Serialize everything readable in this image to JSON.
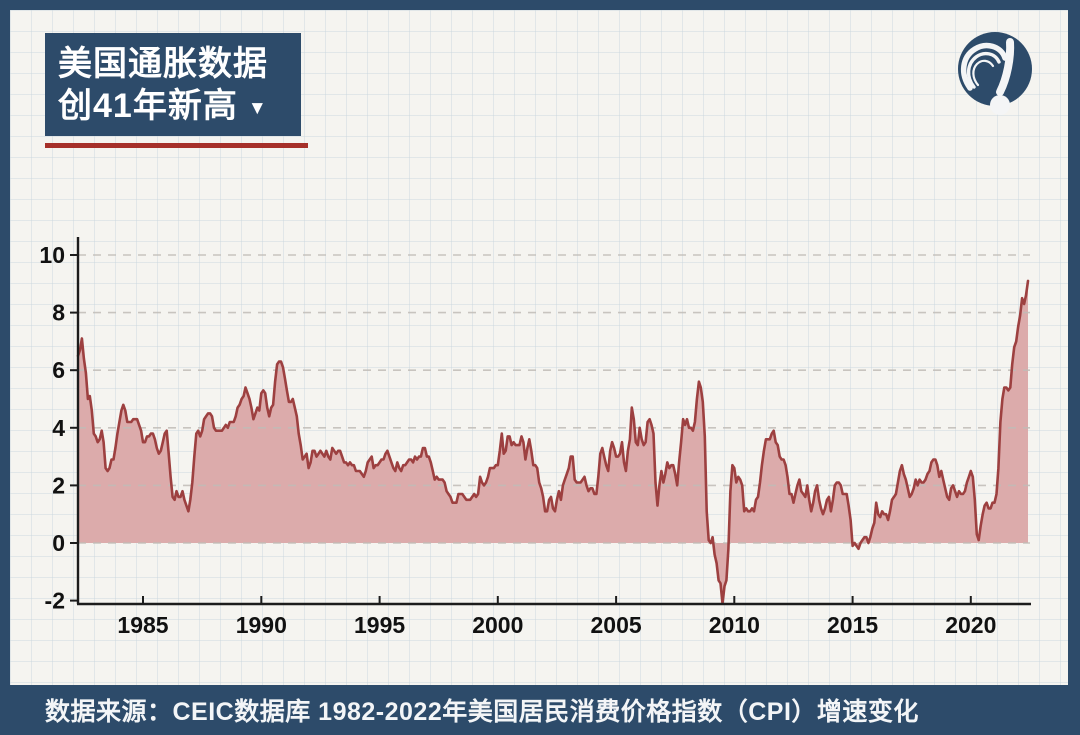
{
  "header": {
    "title_line1": "美国通胀数据",
    "title_line2": "创41年新高",
    "dropdown_icon": "▼"
  },
  "footer": {
    "source_text": "数据来源：CEIC数据库 1982-2022年美国居民消费价格指数（CPI）增速变化"
  },
  "colors": {
    "frame_blue": "#2d4b6a",
    "paper": "#f5f4f0",
    "accent_red": "#a6302a",
    "area_fill": "#dcabab",
    "line": "#9d4040",
    "axis": "#1c1c1c",
    "grid_dash": "#bfbbb6",
    "label": "#111111"
  },
  "chart_data": {
    "type": "area",
    "x_unit": "month",
    "x_start": "1982-04",
    "x_end": "2022-06",
    "x_ticks": [
      1985,
      1990,
      1995,
      2000,
      2005,
      2010,
      2015,
      2020
    ],
    "y_ticks": [
      -2,
      0,
      2,
      4,
      6,
      8,
      10
    ],
    "ylim": [
      -2.2,
      10.6
    ],
    "grid": "dashed-horizontal",
    "values": [
      6.5,
      6.7,
      7.1,
      6.4,
      5.9,
      5.0,
      5.1,
      4.6,
      3.8,
      3.7,
      3.5,
      3.6,
      3.9,
      3.5,
      2.6,
      2.5,
      2.6,
      2.9,
      2.9,
      3.3,
      3.8,
      4.2,
      4.6,
      4.8,
      4.6,
      4.2,
      4.2,
      4.2,
      4.3,
      4.3,
      4.3,
      4.1,
      3.9,
      3.5,
      3.5,
      3.7,
      3.7,
      3.8,
      3.8,
      3.6,
      3.3,
      3.1,
      3.2,
      3.5,
      3.8,
      3.9,
      3.1,
      2.3,
      1.6,
      1.5,
      1.8,
      1.6,
      1.6,
      1.8,
      1.5,
      1.3,
      1.1,
      1.5,
      2.1,
      3.0,
      3.8,
      3.9,
      3.7,
      3.9,
      4.3,
      4.4,
      4.5,
      4.5,
      4.4,
      4.0,
      3.9,
      3.9,
      3.9,
      3.9,
      4.0,
      4.1,
      4.0,
      4.2,
      4.2,
      4.2,
      4.4,
      4.7,
      4.8,
      5.0,
      5.1,
      5.4,
      5.2,
      5.0,
      4.7,
      4.3,
      4.5,
      4.7,
      4.6,
      5.2,
      5.3,
      5.2,
      4.7,
      4.4,
      4.7,
      4.8,
      5.6,
      6.2,
      6.3,
      6.3,
      6.1,
      5.7,
      5.3,
      4.9,
      4.9,
      5.0,
      4.7,
      4.4,
      3.8,
      3.4,
      2.9,
      3.0,
      3.1,
      2.6,
      2.8,
      3.2,
      3.2,
      3.0,
      3.1,
      3.2,
      3.1,
      3.0,
      3.2,
      3.0,
      2.9,
      3.3,
      3.2,
      3.1,
      3.2,
      3.2,
      3.0,
      2.8,
      2.8,
      2.7,
      2.8,
      2.7,
      2.7,
      2.5,
      2.5,
      2.5,
      2.4,
      2.3,
      2.5,
      2.8,
      2.9,
      3.0,
      2.6,
      2.7,
      2.7,
      2.8,
      2.9,
      2.9,
      3.1,
      3.2,
      3.0,
      2.8,
      2.6,
      2.5,
      2.8,
      2.6,
      2.5,
      2.7,
      2.7,
      2.8,
      2.9,
      2.9,
      2.8,
      3.0,
      2.9,
      3.0,
      3.0,
      3.3,
      3.3,
      3.0,
      3.0,
      2.8,
      2.5,
      2.2,
      2.3,
      2.2,
      2.2,
      2.2,
      2.1,
      1.8,
      1.7,
      1.6,
      1.4,
      1.4,
      1.4,
      1.7,
      1.7,
      1.7,
      1.6,
      1.5,
      1.5,
      1.5,
      1.6,
      1.7,
      1.6,
      1.7,
      2.3,
      2.1,
      2.0,
      2.1,
      2.3,
      2.6,
      2.6,
      2.6,
      2.7,
      2.7,
      3.2,
      3.8,
      3.1,
      3.2,
      3.7,
      3.7,
      3.4,
      3.5,
      3.4,
      3.4,
      3.4,
      3.7,
      3.5,
      2.9,
      3.3,
      3.6,
      3.2,
      2.7,
      2.7,
      2.6,
      2.1,
      1.9,
      1.6,
      1.1,
      1.1,
      1.5,
      1.6,
      1.2,
      1.1,
      1.5,
      1.8,
      1.5,
      2.0,
      2.2,
      2.4,
      2.6,
      3.0,
      3.0,
      2.2,
      2.1,
      2.1,
      2.1,
      2.2,
      2.3,
      2.0,
      1.8,
      1.9,
      1.9,
      1.7,
      1.7,
      2.3,
      3.1,
      3.3,
      3.0,
      2.7,
      2.5,
      3.2,
      3.5,
      3.3,
      3.0,
      3.0,
      3.1,
      3.5,
      2.8,
      2.5,
      3.2,
      3.6,
      4.7,
      4.3,
      3.5,
      3.4,
      4.0,
      3.6,
      3.4,
      3.5,
      4.2,
      4.3,
      4.1,
      3.8,
      2.1,
      1.3,
      2.0,
      2.5,
      2.1,
      2.4,
      2.8,
      2.6,
      2.7,
      2.7,
      2.4,
      2.0,
      2.8,
      3.5,
      4.3,
      4.1,
      4.3,
      4.0,
      4.0,
      3.9,
      4.2,
      5.0,
      5.6,
      5.4,
      4.9,
      3.7,
      1.1,
      0.1,
      0.0,
      0.2,
      -0.4,
      -0.7,
      -1.3,
      -1.4,
      -2.1,
      -1.5,
      -1.3,
      -0.2,
      1.8,
      2.7,
      2.6,
      2.1,
      2.3,
      2.2,
      2.0,
      1.1,
      1.2,
      1.1,
      1.1,
      1.2,
      1.1,
      1.5,
      1.6,
      2.1,
      2.7,
      3.2,
      3.6,
      3.6,
      3.6,
      3.8,
      3.9,
      3.5,
      3.4,
      3.0,
      2.9,
      2.9,
      2.7,
      2.3,
      1.7,
      1.7,
      1.4,
      1.7,
      2.0,
      2.2,
      1.8,
      1.7,
      1.6,
      2.0,
      1.5,
      1.1,
      1.4,
      1.8,
      2.0,
      1.5,
      1.2,
      1.0,
      1.2,
      1.5,
      1.6,
      1.1,
      1.5,
      2.0,
      2.1,
      2.1,
      2.0,
      1.7,
      1.7,
      1.7,
      1.3,
      0.8,
      -0.1,
      0.0,
      -0.1,
      -0.2,
      0.0,
      0.1,
      0.2,
      0.2,
      0.0,
      0.2,
      0.5,
      0.7,
      1.4,
      1.0,
      0.9,
      1.1,
      1.0,
      1.0,
      0.8,
      1.1,
      1.5,
      1.6,
      1.7,
      2.1,
      2.5,
      2.7,
      2.4,
      2.2,
      1.9,
      1.6,
      1.7,
      1.9,
      2.2,
      2.0,
      2.2,
      2.1,
      2.1,
      2.2,
      2.4,
      2.5,
      2.8,
      2.9,
      2.9,
      2.7,
      2.3,
      2.5,
      2.2,
      1.9,
      1.6,
      1.5,
      1.9,
      2.0,
      1.8,
      1.6,
      1.8,
      1.7,
      1.7,
      1.8,
      2.1,
      2.3,
      2.5,
      2.3,
      1.5,
      0.3,
      0.1,
      0.6,
      1.0,
      1.3,
      1.4,
      1.2,
      1.2,
      1.4,
      1.4,
      1.7,
      2.6,
      4.2,
      5.0,
      5.4,
      5.4,
      5.3,
      5.4,
      6.2,
      6.8,
      7.0,
      7.5,
      7.9,
      8.5,
      8.3,
      8.6,
      9.1
    ]
  }
}
